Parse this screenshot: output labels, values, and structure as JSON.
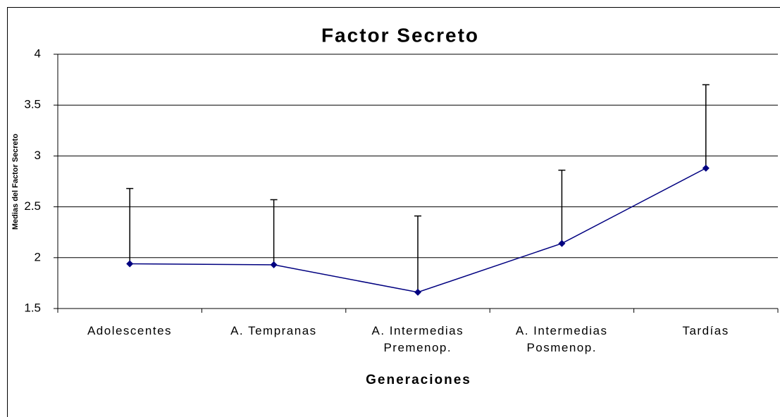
{
  "chart_data": {
    "type": "line",
    "title": "Factor Secreto",
    "x_label": "Generaciones",
    "y_label": "Medias del Factor Secreto",
    "categories": [
      "Adolescentes",
      "A. Tempranas",
      "A. Intermedias\nPremenop.",
      "A. Intermedias\nPosmenop.",
      "Tardías"
    ],
    "series": [
      {
        "name": "Factor Secreto",
        "color": "#000080",
        "values": [
          1.94,
          1.93,
          1.66,
          2.14,
          2.88
        ],
        "errors": [
          0.74,
          0.64,
          0.75,
          0.72,
          0.82
        ]
      }
    ],
    "ylim": [
      1.5,
      4
    ],
    "yticks": [
      1.5,
      2,
      2.5,
      3,
      3.5,
      4
    ],
    "grid": true
  }
}
